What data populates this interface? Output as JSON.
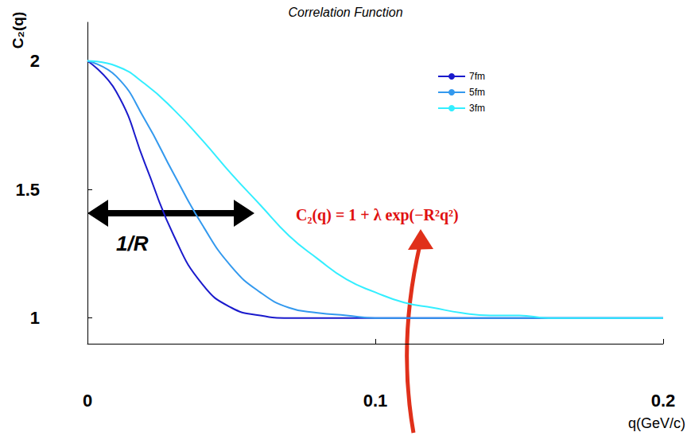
{
  "chart_data": {
    "type": "line",
    "title": "Correlation Function",
    "x_label": "q(GeV/c)",
    "y_label": "C₂(q)",
    "annotations": [
      "C₂(q) = 1 + λ exp(−R²q²)",
      "1/R"
    ],
    "x": [
      0,
      0.01,
      0.02,
      0.03,
      0.04,
      0.05,
      0.06,
      0.07,
      0.08,
      0.09,
      0.1,
      0.11,
      0.12,
      0.13,
      0.14,
      0.15,
      0.16,
      0.17,
      0.18,
      0.19,
      0.2
    ],
    "series": [
      {
        "name": "7fm",
        "color": "#1a1acc",
        "values": [
          2,
          1.88,
          1.6,
          1.32,
          1.13,
          1.04,
          1.01,
          1,
          1,
          1,
          1,
          1,
          1,
          1,
          1,
          1,
          1,
          1,
          1,
          1,
          1
        ]
      },
      {
        "name": "5fm",
        "color": "#3399ee",
        "values": [
          2,
          1.94,
          1.77,
          1.56,
          1.36,
          1.2,
          1.1,
          1.04,
          1.02,
          1.01,
          1,
          1,
          1,
          1,
          1,
          1,
          1,
          1,
          1,
          1,
          1
        ]
      },
      {
        "name": "3fm",
        "color": "#33eeff",
        "values": [
          2,
          1.98,
          1.91,
          1.81,
          1.69,
          1.56,
          1.44,
          1.32,
          1.23,
          1.15,
          1.1,
          1.06,
          1.04,
          1.02,
          1.01,
          1.01,
          1,
          1,
          1,
          1,
          1
        ]
      }
    ],
    "xlim": [
      0,
      0.2
    ],
    "ylim": [
      0.9,
      2.15
    ],
    "xticks": [
      0,
      0.1,
      0.2
    ],
    "yticks": [
      1,
      1.5,
      2
    ],
    "grid": false,
    "legend": "upper right"
  }
}
